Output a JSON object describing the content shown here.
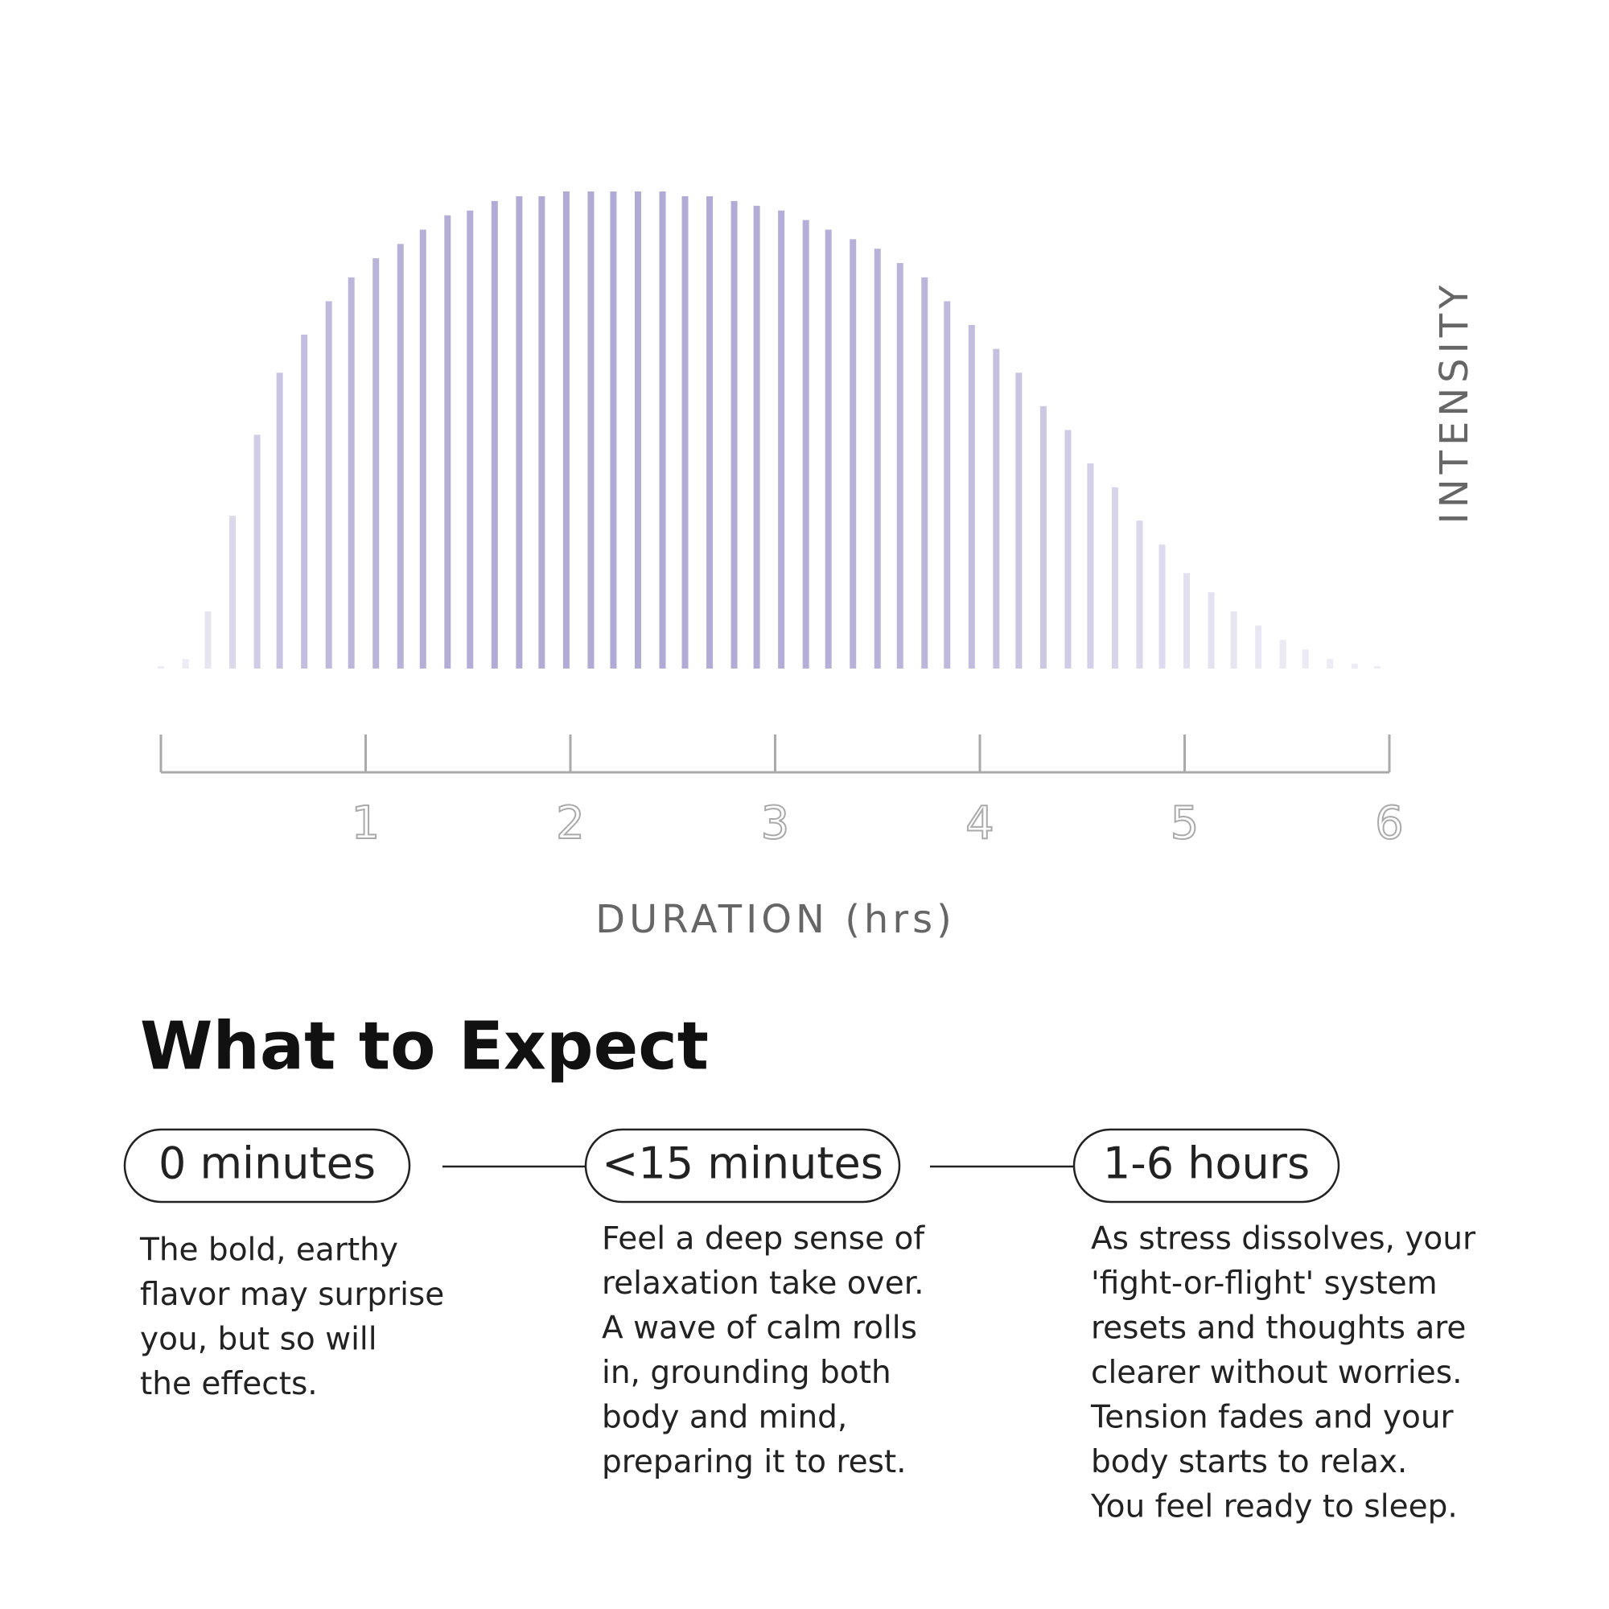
{
  "chart_data": {
    "type": "bar",
    "x": [
      0,
      0.12,
      0.23,
      0.35,
      0.47,
      0.58,
      0.7,
      0.82,
      0.93,
      1.05,
      1.17,
      1.28,
      1.4,
      1.51,
      1.63,
      1.75,
      1.86,
      1.98,
      2.1,
      2.21,
      2.33,
      2.45,
      2.56,
      2.68,
      2.8,
      2.91,
      3.03,
      3.15,
      3.26,
      3.38,
      3.5,
      3.61,
      3.73,
      3.84,
      3.96,
      4.08,
      4.19,
      4.31,
      4.43,
      4.54,
      4.66,
      4.78,
      4.89,
      5.01,
      5.13,
      5.24,
      5.36,
      5.48,
      5.59,
      5.71,
      5.83,
      5.94
    ],
    "values": [
      0.5,
      2,
      12,
      32,
      49,
      62,
      70,
      77,
      82,
      86,
      89,
      92,
      95,
      96,
      98,
      99,
      99,
      100,
      100,
      100,
      100,
      100,
      99,
      99,
      98,
      97,
      96,
      94,
      92,
      90,
      88,
      85,
      82,
      77,
      72,
      67,
      62,
      55,
      50,
      43,
      38,
      31,
      26,
      20,
      16,
      12,
      9,
      6,
      4,
      2,
      1,
      0.5
    ],
    "color": "#8f86c4",
    "xlim": [
      0,
      6
    ],
    "xticks": [
      1,
      2,
      3,
      4,
      5,
      6
    ],
    "ylim": [
      0,
      100
    ],
    "x_label": "DURATION (hrs)",
    "y_label": "INTENSITY"
  },
  "section": {
    "title": "What to Expect",
    "steps": [
      {
        "time": "0 minutes",
        "lines": [
          "The bold, earthy",
          "flavor may surprise",
          "you, but so will",
          "the effects."
        ]
      },
      {
        "time": "<15 minutes",
        "lines": [
          "Feel a deep sense of",
          "relaxation take over.",
          "A wave of calm rolls",
          "in, grounding both",
          "body and mind,",
          "preparing it to rest."
        ]
      },
      {
        "time": "1-6 hours",
        "lines": [
          "As stress dissolves, your",
          "'fight-or-flight' system",
          "resets and thoughts are",
          "clearer without worries.",
          "Tension fades and your",
          "body starts to relax.",
          "You feel ready to sleep."
        ]
      }
    ]
  }
}
